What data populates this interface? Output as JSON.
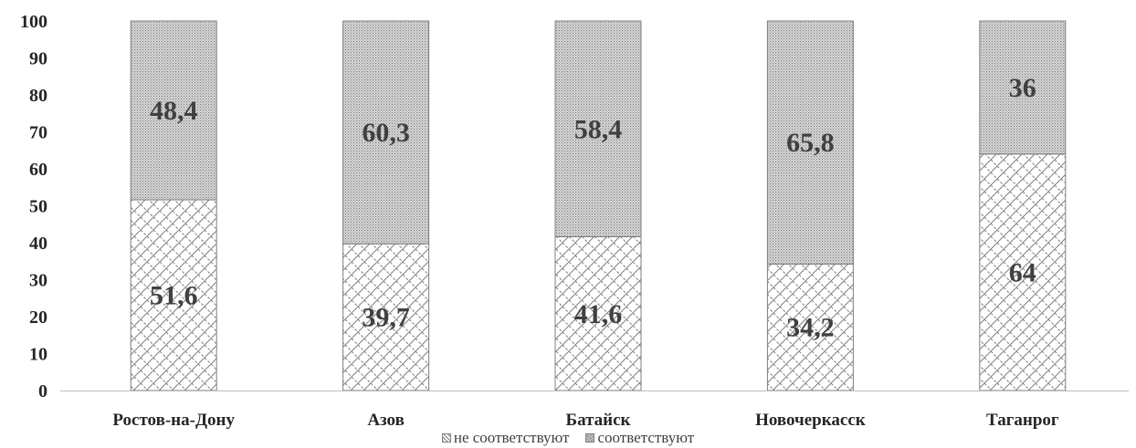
{
  "chart_data": {
    "type": "bar",
    "stacked": true,
    "categories": [
      "Ростов-на-Дону",
      "Азов",
      "Батайск",
      "Новочеркасск",
      "Таганрог"
    ],
    "series": [
      {
        "name": "не соответствуют",
        "values": [
          51.6,
          39.7,
          41.6,
          34.2,
          64
        ],
        "labels": [
          "51,6",
          "39,7",
          "41,6",
          "34,2",
          "64"
        ],
        "pattern": "crosshatch"
      },
      {
        "name": "соответствуют",
        "values": [
          48.4,
          60.3,
          58.4,
          65.8,
          36
        ],
        "labels": [
          "48,4",
          "60,3",
          "58,4",
          "65,8",
          "36"
        ],
        "pattern": "fine-dots"
      }
    ],
    "y_ticks": [
      "0",
      "10",
      "20",
      "30",
      "40",
      "50",
      "60",
      "70",
      "80",
      "90",
      "100"
    ],
    "ylim": [
      0,
      100
    ],
    "grid": false,
    "legend_position": "bottom",
    "colors": {
      "outline": "#7f7f7f",
      "text": "#262626",
      "label": "#404040",
      "axis": "#bfbfbf"
    }
  }
}
